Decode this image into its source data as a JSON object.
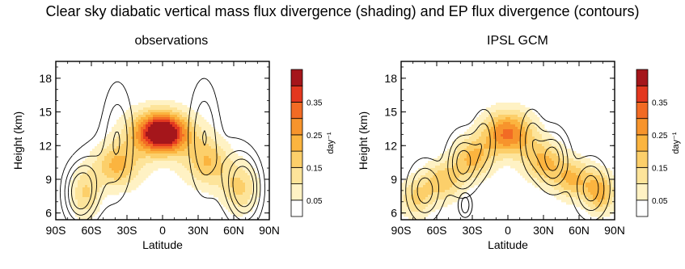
{
  "title": "Clear sky diabatic vertical mass flux divergence (shading) and EP flux divergence (contours)",
  "chart_data": [
    {
      "type": "heatmap",
      "title": "observations",
      "xlabel": "Latitude",
      "ylabel": "Height (km)",
      "xlim": [
        -90,
        90
      ],
      "ylim": [
        5.4,
        19.5
      ],
      "xticks": [
        -90,
        -60,
        -30,
        0,
        30,
        60,
        90
      ],
      "xtick_labels": [
        "90S",
        "60S",
        "30S",
        "0",
        "30N",
        "60N",
        "90N"
      ],
      "yticks": [
        6,
        9,
        12,
        15,
        18
      ],
      "ytick_labels": [
        "6",
        "9",
        "12",
        "15",
        "18"
      ],
      "colorbar": {
        "unit": "day⁻¹",
        "levels": [
          0.0,
          0.05,
          0.1,
          0.15,
          0.2,
          0.25,
          0.3,
          0.35,
          0.4
        ],
        "tick_labels": [
          "0.05",
          "0.15",
          "0.25",
          "0.35"
        ],
        "colors": [
          "#ffffff",
          "#fff2c4",
          "#fde49a",
          "#fccf6a",
          "#fbb43f",
          "#f7942c",
          "#f26b24",
          "#e3381f",
          "#a5161b"
        ]
      },
      "shading_blobs": [
        {
          "lat": 0,
          "height": 13.0,
          "amp": 0.42,
          "sx": 14,
          "sy": 1.2
        },
        {
          "lat": -4,
          "height": 13.8,
          "amp": 0.12,
          "sx": 18,
          "sy": 1.4
        },
        {
          "lat": -40,
          "height": 10.2,
          "amp": 0.18,
          "sx": 13,
          "sy": 1.4
        },
        {
          "lat": 40,
          "height": 10.5,
          "amp": 0.16,
          "sx": 12,
          "sy": 1.5
        },
        {
          "lat": -65,
          "height": 7.7,
          "amp": 0.15,
          "sx": 9,
          "sy": 1.6
        },
        {
          "lat": 65,
          "height": 8.2,
          "amp": 0.16,
          "sx": 11,
          "sy": 1.6
        },
        {
          "lat": -25,
          "height": 11.5,
          "amp": 0.07,
          "sx": 15,
          "sy": 2.2
        },
        {
          "lat": 25,
          "height": 11.5,
          "amp": 0.07,
          "sx": 15,
          "sy": 2.2
        }
      ],
      "contour_values": [
        -0.6,
        -1.2,
        -1.8,
        -2.4
      ],
      "contour_centers": [
        {
          "lat": -38,
          "height": 12.5,
          "amp": -1.8,
          "sx": 9,
          "sy": 3.5
        },
        {
          "lat": 35,
          "height": 12.8,
          "amp": -1.8,
          "sx": 9,
          "sy": 3.5
        },
        {
          "lat": -70,
          "height": 7.8,
          "amp": -3.0,
          "sx": 9,
          "sy": 1.8
        },
        {
          "lat": 70,
          "height": 8.2,
          "amp": -3.0,
          "sx": 9,
          "sy": 2.0
        },
        {
          "lat": -58,
          "height": 9.5,
          "amp": -1.0,
          "sx": 10,
          "sy": 2.5
        },
        {
          "lat": 58,
          "height": 9.5,
          "amp": -1.0,
          "sx": 10,
          "sy": 2.5
        }
      ]
    },
    {
      "type": "heatmap",
      "title": "IPSL GCM",
      "xlabel": "Latitude",
      "ylabel": "Height (km)",
      "xlim": [
        -90,
        90
      ],
      "ylim": [
        5.4,
        19.5
      ],
      "xticks": [
        -90,
        -60,
        -30,
        0,
        30,
        60,
        90
      ],
      "xtick_labels": [
        "90S",
        "60S",
        "30S",
        "0",
        "30N",
        "60N",
        "90N"
      ],
      "yticks": [
        6,
        9,
        12,
        15,
        18
      ],
      "ytick_labels": [
        "6",
        "9",
        "12",
        "15",
        "18"
      ],
      "colorbar": {
        "unit": "day⁻¹",
        "levels": [
          0.0,
          0.05,
          0.1,
          0.15,
          0.2,
          0.25,
          0.3,
          0.35,
          0.4
        ],
        "tick_labels": [
          "0.05",
          "0.15",
          "0.25",
          "0.35"
        ],
        "colors": [
          "#ffffff",
          "#fff2c4",
          "#fde49a",
          "#fccf6a",
          "#fbb43f",
          "#f7942c",
          "#f26b24",
          "#e3381f",
          "#a5161b"
        ]
      },
      "shading_blobs": [
        {
          "lat": 0,
          "height": 12.8,
          "amp": 0.27,
          "sx": 16,
          "sy": 1.3
        },
        {
          "lat": -30,
          "height": 10.8,
          "amp": 0.2,
          "sx": 12,
          "sy": 1.3
        },
        {
          "lat": 30,
          "height": 10.5,
          "amp": 0.2,
          "sx": 12,
          "sy": 1.3
        },
        {
          "lat": -55,
          "height": 8.8,
          "amp": 0.18,
          "sx": 12,
          "sy": 1.3
        },
        {
          "lat": 55,
          "height": 9.0,
          "amp": 0.2,
          "sx": 12,
          "sy": 1.3
        },
        {
          "lat": -78,
          "height": 7.3,
          "amp": 0.15,
          "sx": 10,
          "sy": 1.3
        },
        {
          "lat": 78,
          "height": 7.8,
          "amp": 0.22,
          "sx": 9,
          "sy": 1.3
        },
        {
          "lat": 0,
          "height": 14.3,
          "amp": 0.08,
          "sx": 14,
          "sy": 1.2
        }
      ],
      "contour_values": [
        -0.6,
        -1.2,
        -1.8,
        -2.4,
        -3.0
      ],
      "contour_centers": [
        {
          "lat": -38,
          "height": 10.5,
          "amp": -2.8,
          "sx": 9,
          "sy": 1.8
        },
        {
          "lat": 38,
          "height": 10.8,
          "amp": -2.8,
          "sx": 9,
          "sy": 1.8
        },
        {
          "lat": -20,
          "height": 12.5,
          "amp": -1.5,
          "sx": 7,
          "sy": 2.0
        },
        {
          "lat": 20,
          "height": 12.5,
          "amp": -1.5,
          "sx": 7,
          "sy": 2.0
        },
        {
          "lat": -70,
          "height": 8.0,
          "amp": -2.2,
          "sx": 10,
          "sy": 1.8
        },
        {
          "lat": 70,
          "height": 8.2,
          "amp": -2.2,
          "sx": 10,
          "sy": 1.8
        }
      ],
      "positive_contours": [
        {
          "lat": -36,
          "height": 6.7,
          "rx_deg": 6,
          "ry_km": 1.1
        },
        {
          "lat": -36,
          "height": 6.7,
          "rx_deg": 3.2,
          "ry_km": 0.7
        }
      ]
    }
  ]
}
